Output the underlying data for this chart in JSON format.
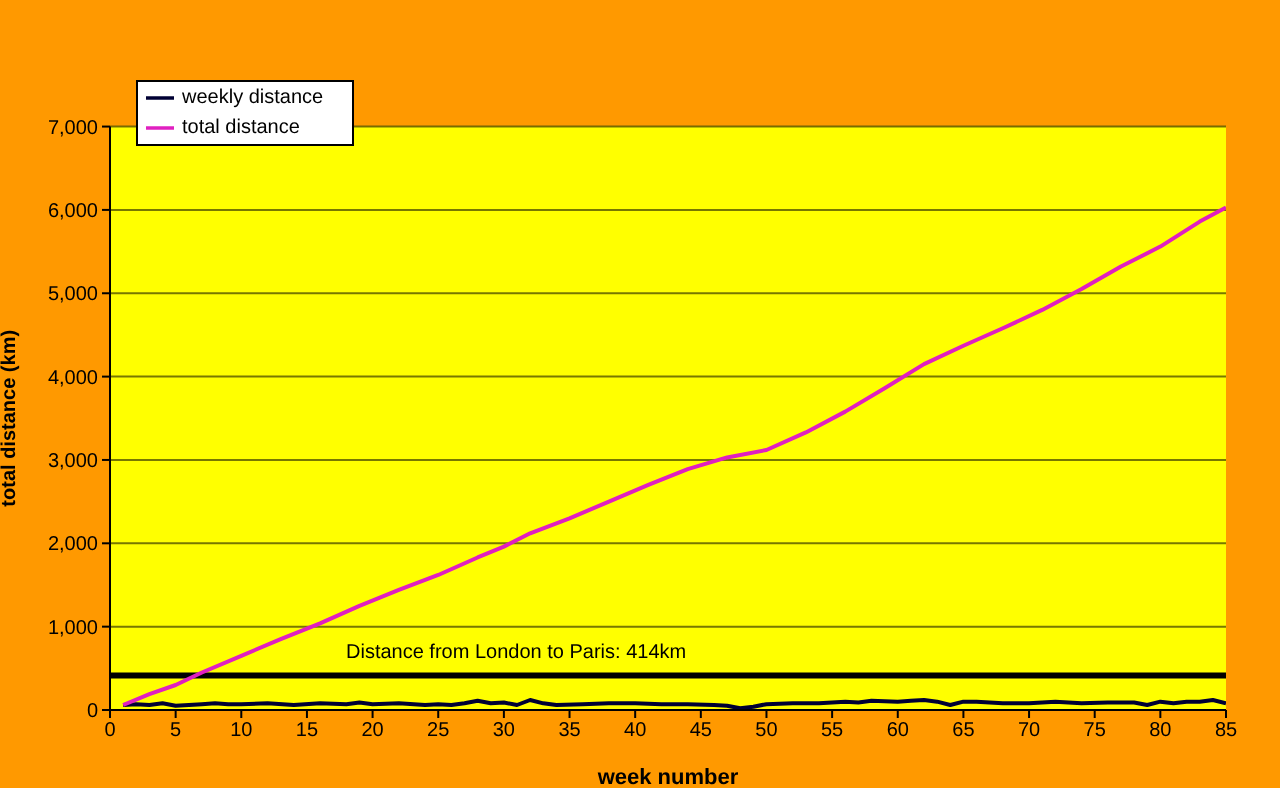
{
  "chart_data": {
    "type": "line",
    "xlabel": "week number",
    "ylabel": "total distance (km)",
    "xlim": [
      0,
      85
    ],
    "xticks": [
      0,
      5,
      10,
      15,
      20,
      25,
      30,
      35,
      40,
      45,
      50,
      55,
      60,
      65,
      70,
      75,
      80,
      85
    ],
    "ylim": [
      0,
      7000
    ],
    "yticks": [
      0,
      {
        "value": 1000,
        "label": "1,000"
      },
      {
        "value": 2000,
        "label": "2,000"
      },
      {
        "value": 3000,
        "label": "3,000"
      },
      {
        "value": 4000,
        "label": "4,000"
      },
      {
        "value": 5000,
        "label": "5,000"
      },
      {
        "value": 6000,
        "label": "6,000"
      },
      {
        "value": 7000,
        "label": "7,000"
      }
    ],
    "grid": "y",
    "legend": "top left",
    "marker": "none",
    "line_style": "solid",
    "series": [
      {
        "name": "weekly distance",
        "color": "#000033",
        "x": [
          1,
          2,
          3,
          4,
          5,
          6,
          7,
          8,
          9,
          10,
          12,
          14,
          16,
          18,
          19,
          20,
          22,
          24,
          25,
          26,
          27,
          28,
          29,
          30,
          31,
          32,
          33,
          34,
          36,
          38,
          40,
          42,
          44,
          46,
          47,
          48,
          49,
          50,
          52,
          54,
          56,
          57,
          58,
          60,
          61,
          62,
          63,
          64,
          65,
          66,
          68,
          70,
          72,
          74,
          76,
          78,
          79,
          80,
          81,
          82,
          83,
          84,
          85
        ],
        "values": [
          60,
          70,
          60,
          80,
          50,
          60,
          70,
          80,
          70,
          70,
          80,
          60,
          80,
          70,
          90,
          70,
          80,
          60,
          70,
          60,
          80,
          110,
          80,
          90,
          60,
          120,
          80,
          60,
          70,
          80,
          80,
          70,
          70,
          60,
          50,
          20,
          40,
          70,
          80,
          80,
          100,
          90,
          110,
          100,
          110,
          120,
          100,
          60,
          100,
          100,
          80,
          80,
          100,
          80,
          90,
          90,
          60,
          100,
          80,
          100,
          100,
          120,
          80
        ]
      },
      {
        "name": "total distance",
        "color": "#e020c0",
        "x": [
          1,
          3,
          5,
          7,
          10,
          13,
          16,
          19,
          22,
          25,
          28,
          30,
          32,
          35,
          38,
          41,
          44,
          47,
          50,
          53,
          56,
          59,
          62,
          65,
          68,
          71,
          74,
          77,
          80,
          83,
          85
        ],
        "values": [
          60,
          190,
          300,
          450,
          650,
          850,
          1040,
          1250,
          1440,
          1620,
          1830,
          1960,
          2120,
          2300,
          2500,
          2700,
          2890,
          3030,
          3120,
          3330,
          3580,
          3860,
          4150,
          4370,
          4580,
          4800,
          5050,
          5320,
          5560,
          5860,
          6030
        ]
      }
    ],
    "ref_lines": [
      {
        "axis": "y",
        "value": 414,
        "label": "Distance from London to  Paris: 414km",
        "color": "#000000"
      }
    ]
  }
}
